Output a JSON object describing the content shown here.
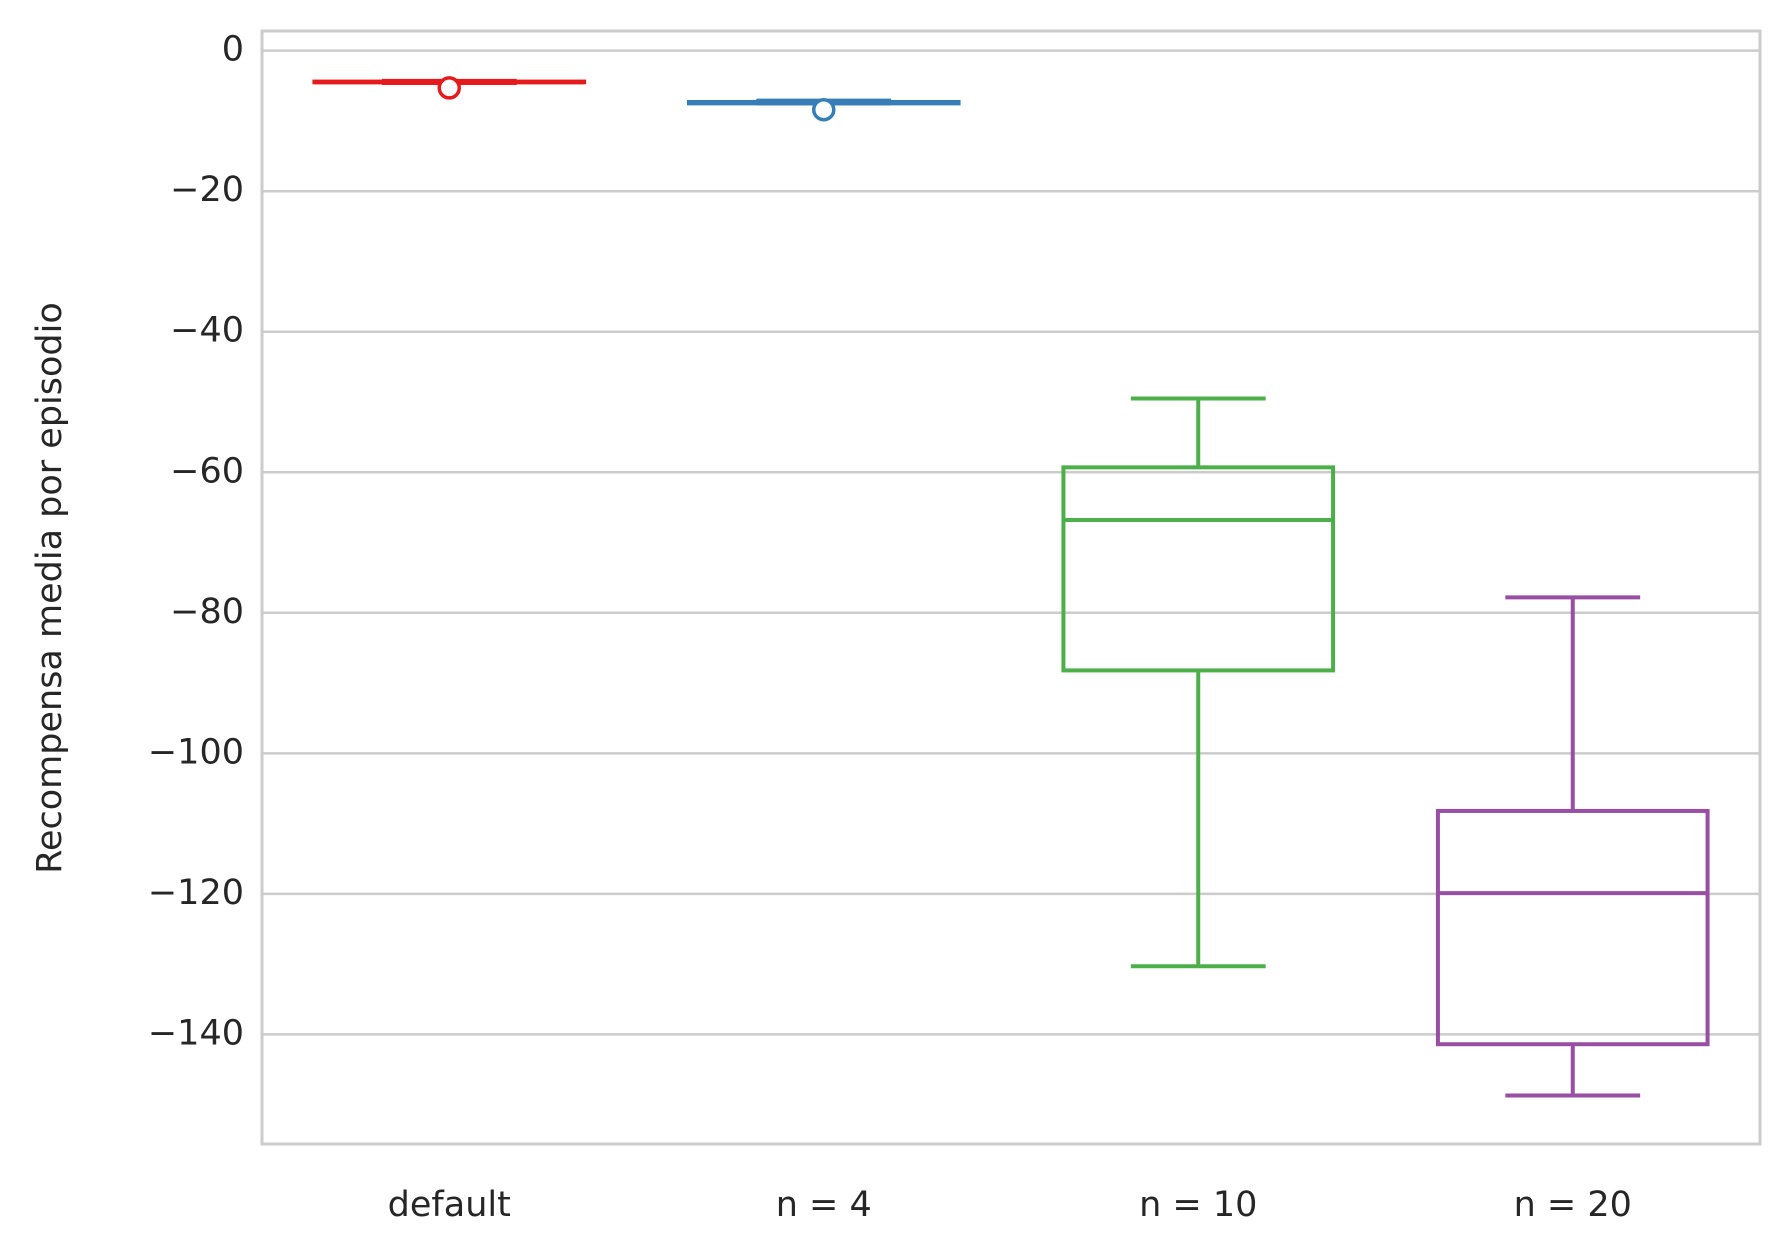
{
  "chart_data": {
    "type": "box",
    "y_label": "Recompensa media por episodio",
    "categories": [
      "default",
      "n = 4",
      "n = 10",
      "n = 20"
    ],
    "colors": [
      "#e41a1c",
      "#377eb8",
      "#4daf4a",
      "#984ea3"
    ],
    "boxes": [
      {
        "whisker_low": -4.6,
        "q1": -4.5,
        "median": -4.5,
        "q3": -4.4,
        "whisker_high": -4.3,
        "outliers": [
          -5.3
        ]
      },
      {
        "whisker_low": -7.5,
        "q1": -7.5,
        "median": -7.4,
        "q3": -7.3,
        "whisker_high": -7.1,
        "outliers": [
          -8.4
        ]
      },
      {
        "whisker_low": -130.3,
        "q1": -88.2,
        "median": -66.8,
        "q3": -59.3,
        "whisker_high": -49.5,
        "outliers": []
      },
      {
        "whisker_low": -148.7,
        "q1": -141.4,
        "median": -119.9,
        "q3": -108.2,
        "whisker_high": -77.8,
        "outliers": []
      }
    ],
    "ylim": [
      -155.6,
      2.8
    ],
    "yticks": [
      0,
      {
        "value": -20,
        "label": "−20"
      },
      {
        "value": -40,
        "label": "−40"
      },
      {
        "value": -60,
        "label": "−60"
      },
      {
        "value": -80,
        "label": "−80"
      },
      {
        "value": -100,
        "label": "−100"
      },
      {
        "value": -120,
        "label": "−120"
      },
      {
        "value": -140,
        "label": "−140"
      }
    ],
    "grid": true
  }
}
